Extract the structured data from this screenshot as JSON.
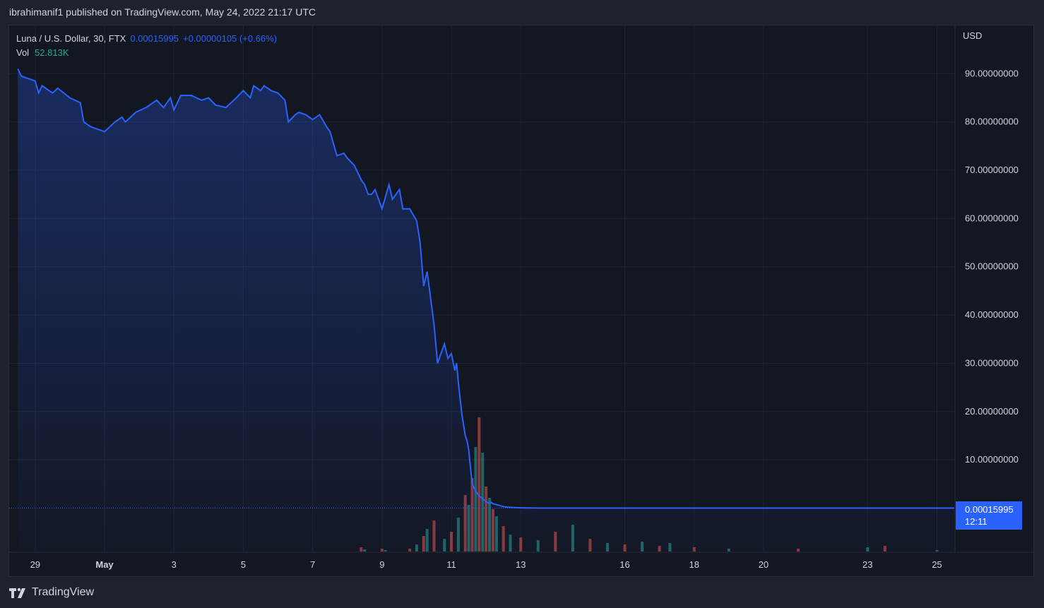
{
  "header": {
    "published_text": "ibrahimanif1 published on TradingView.com, May 24, 2022 21:17 UTC"
  },
  "legend": {
    "symbol": "Luna / U.S. Dollar, 30, FTX",
    "price": "0.00015995",
    "change": "+0.00000105 (+0.66%)",
    "vol_label": "Vol",
    "vol_value": "52.813K"
  },
  "axis": {
    "currency": "USD",
    "last_price": "0.00015995",
    "countdown": "12:11"
  },
  "brand": {
    "name": "TradingView"
  },
  "colors": {
    "line": "#2962ff",
    "volume_up": "#26a69a",
    "volume_down": "#ef5350",
    "background": "#131722"
  },
  "chart_data": {
    "type": "area",
    "series": [
      {
        "name": "Luna / U.S. Dollar, 30, FTX",
        "x": [
          -2.5,
          -2.4,
          -2.2,
          -2.0,
          -1.9,
          -1.8,
          -1.5,
          -1.35,
          -1.0,
          -0.7,
          -0.6,
          -0.4,
          0.0,
          0.3,
          0.5,
          0.6,
          0.9,
          1.2,
          1.5,
          1.7,
          1.9,
          2.0,
          2.2,
          2.5,
          2.8,
          3.0,
          3.2,
          3.5,
          3.8,
          4.0,
          4.2,
          4.3,
          4.5,
          4.6,
          4.8,
          5.0,
          5.2,
          5.3,
          5.5,
          5.6,
          5.8,
          6.0,
          6.2,
          6.4,
          6.5,
          6.7,
          6.9,
          7.0,
          7.2,
          7.4,
          7.5,
          7.6,
          7.7,
          7.8,
          8.0,
          8.2,
          8.3,
          8.5,
          8.6,
          8.8,
          9.0,
          9.1,
          9.2,
          9.3,
          9.5,
          9.6,
          9.8,
          9.9,
          10.0,
          10.1,
          10.15,
          10.2,
          10.3,
          10.4,
          10.45,
          10.5,
          10.55,
          10.6,
          10.7,
          10.8,
          10.9,
          11.0,
          11.1,
          11.15,
          11.2,
          11.3,
          11.4,
          11.5,
          11.6,
          11.8,
          12.0,
          12.3,
          12.7,
          13.0,
          14.0,
          16.0,
          20.0,
          24.5
        ],
        "y": [
          91.0,
          89.5,
          89.0,
          88.5,
          86.0,
          87.5,
          86.0,
          87.0,
          85.0,
          84.0,
          80.0,
          79.0,
          78.0,
          80.0,
          81.0,
          80.0,
          82.0,
          83.0,
          84.5,
          83.0,
          85.0,
          82.5,
          85.5,
          85.5,
          84.5,
          85.0,
          83.5,
          83.0,
          85.0,
          86.5,
          85.0,
          87.5,
          86.5,
          87.5,
          86.5,
          86.0,
          84.5,
          80.0,
          81.5,
          82.0,
          81.5,
          80.5,
          81.5,
          79.0,
          78.0,
          73.0,
          73.5,
          72.5,
          71.0,
          68.0,
          67.0,
          65.0,
          65.0,
          66.0,
          62.0,
          67.0,
          64.0,
          66.0,
          62.0,
          62.0,
          59.5,
          55.0,
          46.0,
          49.0,
          38.0,
          30.0,
          34.0,
          31.0,
          32.0,
          28.5,
          30.0,
          26.0,
          19.5,
          15.0,
          14.0,
          12.0,
          8.5,
          5.0,
          3.5,
          2.5,
          2.0,
          1.3,
          1.0,
          1.2,
          0.9,
          0.7,
          0.5,
          0.3,
          0.2,
          0.1,
          0.05,
          0.01,
          0.005,
          0.001,
          0.0005,
          0.0003,
          0.0002,
          0.00016
        ]
      }
    ],
    "x_ticks": [
      {
        "value": -2,
        "label": "29"
      },
      {
        "value": 0,
        "label": "May"
      },
      {
        "value": 2,
        "label": "3"
      },
      {
        "value": 4,
        "label": "5"
      },
      {
        "value": 6,
        "label": "7"
      },
      {
        "value": 8,
        "label": "9"
      },
      {
        "value": 10,
        "label": "11"
      },
      {
        "value": 12,
        "label": "13"
      },
      {
        "value": 15,
        "label": "16"
      },
      {
        "value": 17,
        "label": "18"
      },
      {
        "value": 19,
        "label": "20"
      },
      {
        "value": 22,
        "label": "23"
      },
      {
        "value": 24,
        "label": "25"
      }
    ],
    "y_ticks": [
      {
        "value": 10,
        "label": "10.00000000"
      },
      {
        "value": 20,
        "label": "20.00000000"
      },
      {
        "value": 30,
        "label": "30.00000000"
      },
      {
        "value": 40,
        "label": "40.00000000"
      },
      {
        "value": 50,
        "label": "50.00000000"
      },
      {
        "value": 60,
        "label": "60.00000000"
      },
      {
        "value": 70,
        "label": "70.00000000"
      },
      {
        "value": 80,
        "label": "80.00000000"
      },
      {
        "value": 90,
        "label": "90.00000000"
      }
    ],
    "xlim": [
      -2.75,
      24.5
    ],
    "ylim": [
      -9,
      100
    ],
    "grid": true,
    "volume": {
      "x": [
        7.4,
        7.5,
        8.0,
        8.1,
        8.8,
        9.0,
        9.2,
        9.3,
        9.5,
        9.8,
        10.0,
        10.2,
        10.4,
        10.5,
        10.6,
        10.7,
        10.8,
        10.9,
        11.0,
        11.1,
        11.2,
        11.3,
        11.5,
        11.7,
        12.0,
        12.5,
        13.0,
        13.5,
        14.0,
        14.5,
        15.0,
        15.5,
        16.0,
        16.3,
        17.0,
        18.0,
        20.0,
        22.0,
        22.5,
        24.0
      ],
      "values": [
        3,
        1.5,
        2,
        1,
        2,
        5,
        11,
        16,
        22,
        9,
        14,
        24,
        40,
        33,
        52,
        74,
        95,
        70,
        46,
        38,
        30,
        25,
        18,
        12,
        10,
        8,
        14,
        19,
        9,
        6,
        5,
        7,
        4,
        6,
        3,
        2,
        2,
        3,
        4,
        1
      ]
    }
  }
}
